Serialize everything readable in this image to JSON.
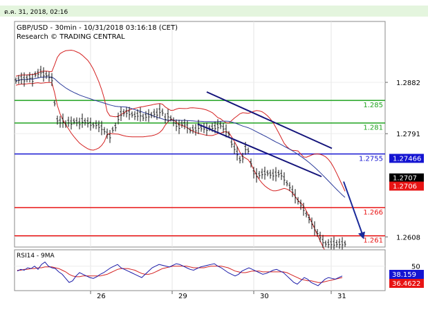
{
  "header": {
    "timestamp": "ต.ค. 31, 2018, 02:16"
  },
  "colors": {
    "header_bg": "#e4f5de",
    "price_bars": "#111111",
    "bollinger": "#d42020",
    "moving_average": "#2a3a9a",
    "channel": "#13137a",
    "support": "#e81414",
    "resistance": "#1fa31f",
    "pivot": "#1414d2",
    "rsi_line": "#1a1aa8",
    "rsi_signal": "#d42020",
    "forecast_arrow": "#1a2a9a"
  },
  "chart_data": [
    {
      "type": "line",
      "title": "GBP/USD - 30min - 10/31/2018 03:16:18 (CET)",
      "subtitle": "Research © TRADING CENTRAL",
      "x_tick_labels": [
        "26",
        "29",
        "30",
        "31"
      ],
      "y_tick_labels": [
        "1.2882",
        "1.2791",
        "1.2608"
      ],
      "ylim": [
        1.259,
        1.299
      ],
      "grid": true,
      "series": [
        {
          "role": "price",
          "x": [
            1,
            3,
            5,
            7,
            9,
            11,
            13,
            15,
            17,
            19,
            21,
            23,
            25,
            27,
            29,
            31,
            33,
            35,
            37,
            39,
            41,
            43,
            45,
            47,
            49,
            51,
            53,
            55,
            57,
            59,
            61,
            63,
            65,
            67,
            69,
            71,
            73,
            75,
            77,
            79,
            81,
            83,
            85,
            87,
            89,
            91,
            93,
            95,
            97,
            99,
            101,
            103,
            105,
            107,
            109,
            111,
            113,
            115,
            117,
            119,
            121,
            123,
            125,
            127,
            129,
            131,
            133,
            135,
            137,
            139,
            141,
            143,
            145,
            147,
            149,
            151,
            153,
            155,
            157,
            159,
            161,
            163,
            165,
            167,
            169,
            171,
            173,
            175,
            177,
            179,
            181,
            183,
            185,
            187,
            189,
            191,
            193,
            195,
            197,
            199,
            201,
            203,
            205,
            207,
            209,
            211,
            213,
            215,
            217,
            219,
            221,
            223,
            225,
            227,
            229,
            231,
            233,
            235,
            237,
            239,
            241,
            243
          ],
          "values": [
            1.2885,
            1.2887,
            1.2889,
            1.2887,
            1.2889,
            1.2891,
            1.2886,
            1.2896,
            1.2898,
            1.2901,
            1.2896,
            1.2895,
            1.2892,
            1.2887,
            1.2845,
            1.2815,
            1.2812,
            1.2814,
            1.2808,
            1.2812,
            1.281,
            1.2813,
            1.2812,
            1.2809,
            1.2814,
            1.2812,
            1.2811,
            1.2808,
            1.2806,
            1.2807,
            1.2804,
            1.2801,
            1.2796,
            1.2791,
            1.2786,
            1.2798,
            1.2803,
            1.2818,
            1.2826,
            1.2828,
            1.2829,
            1.2827,
            1.2825,
            1.2823,
            1.2824,
            1.2825,
            1.282,
            1.2822,
            1.2823,
            1.2824,
            1.2827,
            1.2826,
            1.2831,
            1.2829,
            1.2818,
            1.2823,
            1.2818,
            1.2812,
            1.2806,
            1.2803,
            1.2808,
            1.2808,
            1.2803,
            1.2797,
            1.2799,
            1.2798,
            1.2803,
            1.2801,
            1.2801,
            1.2799,
            1.2801,
            1.2802,
            1.2802,
            1.2804,
            1.2806,
            1.2801,
            1.2796,
            1.279,
            1.2774,
            1.2765,
            1.2756,
            1.2745,
            1.2748,
            1.2765,
            1.2761,
            1.2739,
            1.2722,
            1.2717,
            1.2718,
            1.272,
            1.2721,
            1.2721,
            1.2719,
            1.2718,
            1.2719,
            1.272,
            1.2718,
            1.2711,
            1.2703,
            1.2697,
            1.2689,
            1.268,
            1.2672,
            1.2665,
            1.2657,
            1.2648,
            1.264,
            1.2632,
            1.2623,
            1.2615,
            1.2608,
            1.26,
            1.2596,
            1.2596,
            1.2596,
            1.2596,
            1.2596,
            1.2596,
            1.2596,
            1.2596,
            1.2596,
            1.2596
          ]
        }
      ],
      "levels": [
        {
          "label": "1.285",
          "value": 1.285,
          "kind": "resistance"
        },
        {
          "label": "1.281",
          "value": 1.281,
          "kind": "resistance"
        },
        {
          "label": "1.2755",
          "value": 1.2755,
          "kind": "pivot"
        },
        {
          "label": "1.266",
          "value": 1.266,
          "kind": "support"
        },
        {
          "label": "1.261",
          "value": 1.261,
          "kind": "support"
        }
      ],
      "price_tags": [
        {
          "label": "1.27466",
          "value": 1.27466,
          "style": "blue"
        },
        {
          "label": "1.2707",
          "value": 1.2707,
          "style": "black"
        },
        {
          "label": "1.2706",
          "value": 1.2706,
          "style": "red"
        }
      ]
    },
    {
      "type": "line",
      "title": "RSI14 - 9MA",
      "y_tick_labels": [
        "50"
      ],
      "ylim": [
        20,
        70
      ],
      "values_rsi": [
        44,
        46,
        45,
        48,
        47,
        50,
        46,
        52,
        55,
        50,
        48,
        47,
        43,
        40,
        35,
        30,
        32,
        38,
        42,
        40,
        38,
        36,
        35,
        37,
        40,
        42,
        45,
        48,
        50,
        52,
        48,
        46,
        44,
        42,
        40,
        38,
        36,
        40,
        44,
        48,
        50,
        52,
        51,
        50,
        49,
        51,
        53,
        52,
        50,
        48,
        46,
        45,
        47,
        49,
        50,
        51,
        52,
        53,
        50,
        48,
        45,
        42,
        40,
        38,
        40,
        44,
        46,
        48,
        46,
        44,
        42,
        40,
        41,
        43,
        45,
        46,
        44,
        42,
        38,
        34,
        30,
        28,
        32,
        36,
        34,
        30,
        28,
        26,
        30,
        34,
        36,
        35,
        34,
        36,
        38
      ],
      "values_ma": [
        45,
        45,
        46,
        46,
        47,
        47,
        48,
        48,
        49,
        49,
        49,
        48,
        47,
        45,
        43,
        40,
        38,
        37,
        37,
        38,
        38,
        38,
        38,
        38,
        38,
        39,
        40,
        42,
        44,
        46,
        47,
        47,
        47,
        46,
        45,
        43,
        41,
        40,
        40,
        41,
        43,
        45,
        47,
        48,
        49,
        50,
        50,
        50,
        50,
        50,
        49,
        48,
        48,
        48,
        48,
        49,
        50,
        50,
        50,
        50,
        49,
        48,
        46,
        44,
        43,
        42,
        42,
        43,
        44,
        44,
        44,
        43,
        43,
        43,
        43,
        43,
        43,
        43,
        42,
        40,
        38,
        36,
        34,
        33,
        32,
        32,
        31,
        30,
        30,
        31,
        32,
        33,
        34,
        35,
        36
      ],
      "price_tags": [
        {
          "label": "38.159",
          "value": 38.159,
          "style": "blue"
        },
        {
          "label": "36.4622",
          "value": 36.4622,
          "style": "red"
        }
      ]
    }
  ]
}
